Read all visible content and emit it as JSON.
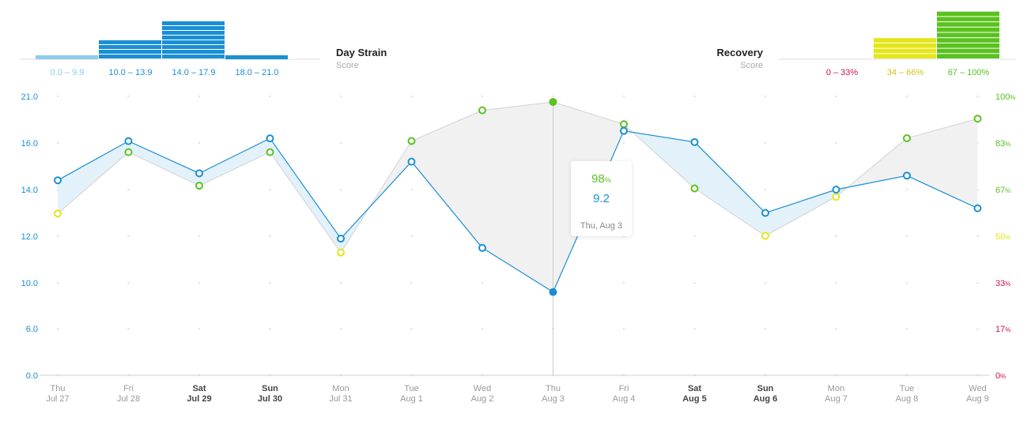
{
  "chart_data": {
    "type": "line",
    "categories": [
      {
        "day": "Thu",
        "date": "Jul 27"
      },
      {
        "day": "Fri",
        "date": "Jul 28"
      },
      {
        "day": "Sat",
        "date": "Jul 29"
      },
      {
        "day": "Sun",
        "date": "Jul 30"
      },
      {
        "day": "Mon",
        "date": "Jul 31"
      },
      {
        "day": "Tue",
        "date": "Aug 1"
      },
      {
        "day": "Wed",
        "date": "Aug 2"
      },
      {
        "day": "Thu",
        "date": "Aug 3"
      },
      {
        "day": "Fri",
        "date": "Aug 4"
      },
      {
        "day": "Sat",
        "date": "Aug 5"
      },
      {
        "day": "Sun",
        "date": "Aug 6"
      },
      {
        "day": "Mon",
        "date": "Aug 7"
      },
      {
        "day": "Tue",
        "date": "Aug 8"
      },
      {
        "day": "Wed",
        "date": "Aug 9"
      }
    ],
    "bold_categories": [
      2,
      3,
      9,
      10
    ],
    "selected_index": 7,
    "left_axis": {
      "ticks": [
        "21.0",
        "16.0",
        "14.0",
        "12.0",
        "10.0",
        "6.0",
        "0.0"
      ],
      "color": "#1a8fd3"
    },
    "right_axis": {
      "ticks": [
        {
          "value": "100",
          "unit": "%",
          "color": "#5ac21f"
        },
        {
          "value": "83",
          "unit": "%",
          "color": "#5ac21f"
        },
        {
          "value": "67",
          "unit": "%",
          "color": "#5ac21f"
        },
        {
          "value": "50",
          "unit": "%",
          "color": "#e4e61a"
        },
        {
          "value": "33",
          "unit": "%",
          "color": "#d0114e"
        },
        {
          "value": "17",
          "unit": "%",
          "color": "#d0114e"
        },
        {
          "value": "0",
          "unit": "%",
          "color": "#d0114e"
        }
      ]
    },
    "series": [
      {
        "key": "strain",
        "color": "#1a8fd3",
        "values": [
          14.4,
          16.2,
          14.7,
          16.5,
          11.9,
          15.2,
          11.5,
          9.2,
          17.3,
          16.1,
          13.0,
          14.0,
          14.6,
          13.2
        ]
      },
      {
        "key": "recovery",
        "values": [
          58,
          80,
          68,
          80,
          44,
          84,
          95,
          98,
          90,
          67,
          50,
          64,
          85,
          92
        ],
        "point_colors": [
          "#e4e61a",
          "#5ac21f",
          "#5ac21f",
          "#5ac21f",
          "#e4e61a",
          "#5ac21f",
          "#5ac21f",
          "#5ac21f",
          "#5ac21f",
          "#5ac21f",
          "#e4e61a",
          "#e4e61a",
          "#5ac21f",
          "#5ac21f"
        ]
      }
    ],
    "colors": {
      "strain_fill": "#e3f1fa",
      "recovery_fill": "#f1f1f1",
      "grid_dot": "#e4e4e4",
      "crosshair": "#cccccc",
      "axis_line": "#cfcfcf"
    }
  },
  "strain_legend": {
    "title": "Day Strain",
    "subtitle": "Score",
    "buckets": [
      {
        "label": "0.0 – 9.9",
        "bars": 1,
        "color": "#8ecbec",
        "label_color": "#8ecbec"
      },
      {
        "label": "10.0 – 13.9",
        "bars": 4,
        "color": "#1a8fd3",
        "label_color": "#1a8fd3"
      },
      {
        "label": "14.0 – 17.9",
        "bars": 8,
        "color": "#1a8fd3",
        "label_color": "#1a8fd3"
      },
      {
        "label": "18.0 – 21.0",
        "bars": 1,
        "color": "#1a8fd3",
        "label_color": "#1a8fd3"
      }
    ]
  },
  "recovery_legend": {
    "title": "Recovery",
    "subtitle": "Score",
    "buckets": [
      {
        "label": "0 – 33%",
        "bars": 0,
        "color": "#d0114e",
        "label_color": "#d0114e"
      },
      {
        "label": "34 – 66%",
        "bars": 4,
        "color": "#e4e61a",
        "label_color": "#c7c71a"
      },
      {
        "label": "67 – 100%",
        "bars": 9,
        "color": "#5ac21f",
        "label_color": "#5ac21f"
      }
    ]
  },
  "tooltip": {
    "recovery_value": "98",
    "recovery_unit": "%",
    "strain_value": "9.2",
    "date": "Thu, Aug 3"
  }
}
